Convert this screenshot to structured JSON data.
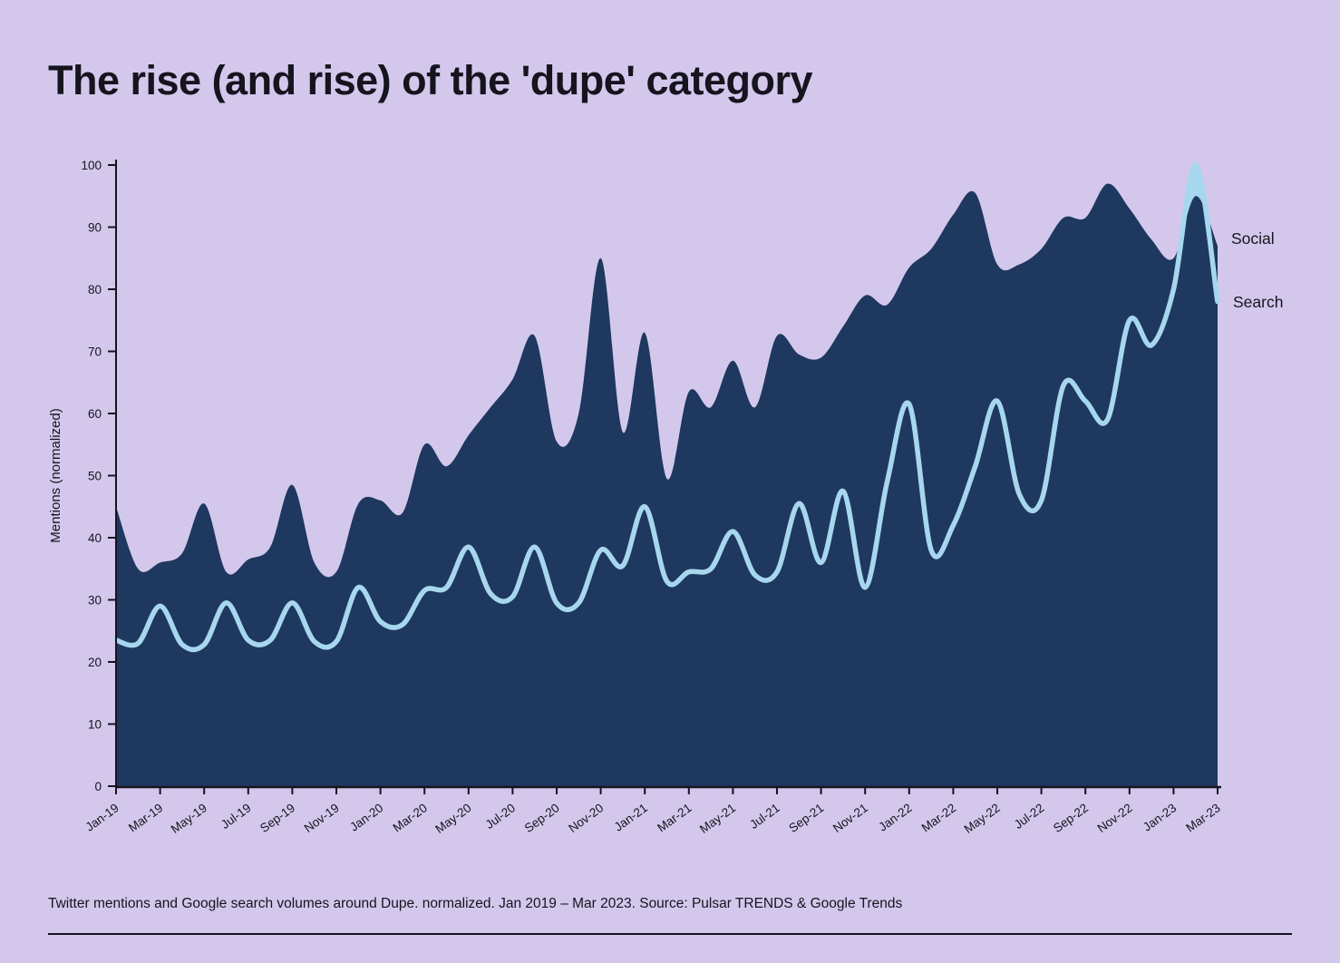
{
  "page": {
    "title": "The rise (and rise) of the 'dupe' category",
    "caption": "Twitter mentions and Google search volumes around Dupe. normalized. Jan 2019 – Mar 2023. Source: Pulsar TRENDS & Google Trends"
  },
  "legend": {
    "social_label": "Social",
    "search_label": "Search"
  },
  "colors": {
    "background": "#d3c8ec",
    "social_fill": "#1e385f",
    "search_line": "#a7d7ee",
    "text": "#16141f",
    "axis": "#16141f"
  },
  "chart_data": {
    "type": "area",
    "title": "The rise (and rise) of the 'dupe' category",
    "xlabel": "",
    "ylabel": "Mentions (normalized)",
    "ylim": [
      0,
      100
    ],
    "ytick_step": 10,
    "grid": false,
    "legend_position": "right",
    "x_tick_every": 2,
    "x": [
      "Jan-19",
      "Feb-19",
      "Mar-19",
      "Apr-19",
      "May-19",
      "Jun-19",
      "Jul-19",
      "Aug-19",
      "Sep-19",
      "Oct-19",
      "Nov-19",
      "Dec-19",
      "Jan-20",
      "Feb-20",
      "Mar-20",
      "Apr-20",
      "May-20",
      "Jun-20",
      "Jul-20",
      "Aug-20",
      "Sep-20",
      "Oct-20",
      "Nov-20",
      "Dec-20",
      "Jan-21",
      "Feb-21",
      "Mar-21",
      "Apr-21",
      "May-21",
      "Jun-21",
      "Jul-21",
      "Aug-21",
      "Sep-21",
      "Oct-21",
      "Nov-21",
      "Dec-21",
      "Jan-22",
      "Feb-22",
      "Mar-22",
      "Apr-22",
      "May-22",
      "Jun-22",
      "Jul-22",
      "Aug-22",
      "Sep-22",
      "Oct-22",
      "Nov-22",
      "Dec-22",
      "Jan-23",
      "Feb-23",
      "Mar-23"
    ],
    "series": [
      {
        "name": "Social",
        "style": "filled-area",
        "values": [
          45,
          35,
          36,
          37.5,
          45.5,
          34.5,
          36.5,
          38.5,
          48.5,
          36,
          34.5,
          45.5,
          46,
          44,
          55,
          51.5,
          56.5,
          61,
          65.5,
          72.5,
          55.5,
          60,
          85,
          57,
          73,
          49.5,
          63.5,
          61,
          68.5,
          61,
          72.5,
          69.5,
          69,
          74,
          79,
          77.5,
          83.5,
          86.5,
          92,
          95.5,
          84,
          84,
          86.5,
          91.5,
          91.5,
          97,
          93,
          88,
          85,
          95,
          87
        ]
      },
      {
        "name": "Search",
        "style": "line-with-area",
        "values": [
          23.5,
          23,
          29,
          22.8,
          22.8,
          29.5,
          23.5,
          23.5,
          29.5,
          23.3,
          23.3,
          32,
          26.5,
          26,
          31.5,
          32,
          38.5,
          31,
          30.5,
          38.5,
          29.5,
          29.5,
          38,
          35.5,
          45,
          33,
          34.5,
          35,
          41,
          34,
          34.5,
          45.5,
          36,
          47.5,
          32,
          49,
          61.5,
          38,
          42,
          51.5,
          62,
          47,
          46,
          64.5,
          62,
          59,
          75,
          71,
          80,
          100,
          78
        ]
      }
    ]
  }
}
